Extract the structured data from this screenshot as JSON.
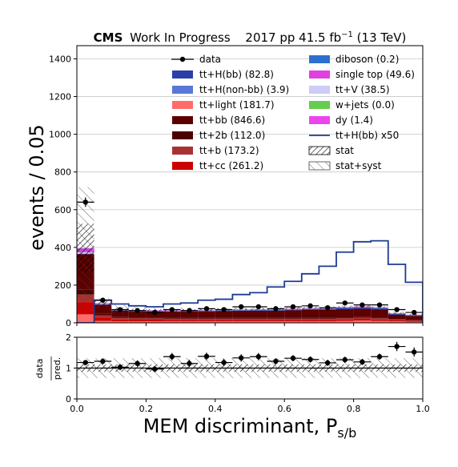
{
  "header": {
    "experiment": "CMS",
    "status": "Work In Progress",
    "lumi_prefix": "2017 pp 41.5 fb",
    "lumi_exp": "−1",
    "lumi_suffix": " (13 TeV)"
  },
  "colors": {
    "ttH_bb": "#2a3ea8",
    "ttH_nonbb": "#5a78d6",
    "tt_light": "#ff6b6b",
    "tt_bb": "#5c0000",
    "tt_2b": "#4d0000",
    "tt_b": "#a83232",
    "tt_cc": "#cc0000",
    "diboson": "#2c6fd1",
    "single_top": "#e040e0",
    "ttV": "#ccccf5",
    "wjets": "#66cc4d",
    "dy": "#ee44ee",
    "signal_line": "#1f3a93"
  },
  "chart_data": [
    {
      "type": "bar",
      "stacked": true,
      "xlabel": "MEM discriminant, P",
      "xlabel_sub": "s/b",
      "ylabel": "events / 0.05",
      "xlim": [
        0,
        1
      ],
      "ylim": [
        0,
        1470
      ],
      "yticks": [
        "0",
        "200",
        "400",
        "600",
        "800",
        "1000",
        "1200",
        "1400"
      ],
      "grid": "horizontal",
      "legend_position": "top",
      "bin_edges": [
        0,
        0.05,
        0.1,
        0.15,
        0.2,
        0.25,
        0.3,
        0.35,
        0.4,
        0.45,
        0.5,
        0.55,
        0.6,
        0.65,
        0.7,
        0.75,
        0.8,
        0.85,
        0.9,
        0.95,
        1.0
      ],
      "series": [
        {
          "key": "tt_light",
          "label": "tt+light (181.7)",
          "values": [
            45,
            10,
            8,
            8,
            8,
            8,
            8,
            8,
            8,
            8,
            8,
            8,
            8,
            8,
            8,
            10,
            12,
            10,
            8,
            6
          ]
        },
        {
          "key": "tt_cc",
          "label": "tt+cc (261.2)",
          "values": [
            65,
            18,
            10,
            9,
            9,
            8,
            8,
            8,
            8,
            8,
            8,
            8,
            8,
            8,
            8,
            8,
            9,
            8,
            6,
            5
          ]
        },
        {
          "key": "tt_b",
          "label": "tt+b (173.2)",
          "values": [
            40,
            12,
            8,
            7,
            7,
            6,
            6,
            6,
            6,
            6,
            6,
            6,
            6,
            6,
            6,
            6,
            6,
            6,
            4,
            3
          ]
        },
        {
          "key": "tt_2b",
          "label": "tt+2b (112.0)",
          "values": [
            25,
            8,
            5,
            4,
            4,
            4,
            4,
            4,
            4,
            4,
            4,
            4,
            4,
            4,
            4,
            4,
            4,
            4,
            3,
            3
          ]
        },
        {
          "key": "tt_bb",
          "label": "tt+bb (846.6)",
          "values": [
            190,
            48,
            34,
            33,
            33,
            34,
            35,
            35,
            37,
            38,
            38,
            38,
            40,
            42,
            42,
            44,
            44,
            42,
            22,
            20
          ]
        },
        {
          "key": "ttH_bb",
          "label": "tt+H(bb) (82.8)",
          "values": [
            1,
            2,
            2,
            2,
            2,
            2,
            2,
            3,
            3,
            3,
            4,
            4,
            5,
            6,
            6,
            8,
            8,
            9,
            6,
            4
          ]
        },
        {
          "key": "ttH_nonbb",
          "label": "tt+H(non-bb) (3.9)",
          "values": [
            0.5,
            0.3,
            0.2,
            0.2,
            0.2,
            0.2,
            0.2,
            0.2,
            0.2,
            0.2,
            0.2,
            0.2,
            0.2,
            0.2,
            0.2,
            0.2,
            0.2,
            0.2,
            0.1,
            0.1
          ]
        },
        {
          "key": "ttV",
          "label": "tt+V (38.5)",
          "values": [
            8,
            2,
            2,
            2,
            2,
            2,
            2,
            2,
            2,
            2,
            2,
            2,
            2,
            2,
            2,
            2,
            2,
            2,
            1,
            1
          ]
        },
        {
          "key": "single_top",
          "label": "single top (49.6)",
          "values": [
            20,
            4,
            2,
            2,
            2,
            2,
            2,
            2,
            2,
            2,
            2,
            2,
            2,
            2,
            2,
            2,
            2,
            2,
            1,
            1
          ]
        },
        {
          "key": "diboson",
          "label": "diboson (0.2)",
          "values": [
            0.1,
            0,
            0,
            0,
            0,
            0,
            0,
            0,
            0,
            0,
            0,
            0,
            0,
            0,
            0,
            0,
            0,
            0,
            0,
            0
          ]
        },
        {
          "key": "wjets",
          "label": "w+jets (0.0)",
          "values": [
            0,
            0,
            0,
            0,
            0,
            0,
            0,
            0,
            0,
            0,
            0,
            0,
            0,
            0,
            0,
            0,
            0,
            0,
            0,
            0
          ]
        },
        {
          "key": "dy",
          "label": "dy (1.4)",
          "values": [
            1,
            0.2,
            0,
            0,
            0,
            0,
            0,
            0,
            0,
            0,
            0,
            0,
            0,
            0,
            0,
            0,
            0,
            0,
            0,
            0
          ]
        }
      ],
      "uncertainty_hi": [
        720,
        130,
        95,
        85,
        80,
        80,
        80,
        80,
        80,
        82,
        82,
        82,
        85,
        88,
        88,
        92,
        95,
        90,
        60,
        50
      ],
      "signal_x50": {
        "label": "tt+H(bb) x50",
        "values": [
          0,
          120,
          100,
          90,
          85,
          100,
          105,
          120,
          125,
          150,
          160,
          190,
          220,
          260,
          300,
          375,
          430,
          435,
          310,
          215
        ]
      },
      "data": {
        "label": "data",
        "values": [
          640,
          120,
          70,
          65,
          55,
          70,
          65,
          75,
          70,
          85,
          85,
          75,
          85,
          90,
          80,
          105,
          95,
          95,
          70,
          55
        ],
        "errors": [
          25,
          11,
          8,
          8,
          7,
          8,
          8,
          9,
          8,
          9,
          9,
          9,
          9,
          9,
          9,
          10,
          10,
          10,
          8,
          7
        ]
      },
      "legend": {
        "col1": [
          "data",
          "tt+H(bb) (82.8)",
          "tt+H(non-bb) (3.9)",
          "tt+light (181.7)",
          "tt+bb (846.6)",
          "tt+2b (112.0)",
          "tt+b (173.2)",
          "tt+cc (261.2)"
        ],
        "col2": [
          "diboson (0.2)",
          "single top (49.6)",
          "tt+V (38.5)",
          "w+jets (0.0)",
          "dy (1.4)",
          "tt+H(bb) x50",
          "stat",
          "stat+syst"
        ]
      }
    },
    {
      "type": "scatter",
      "ylabel_num": "data",
      "ylabel_den": "pred.",
      "xlim": [
        0,
        1
      ],
      "ylim": [
        0,
        2
      ],
      "xticks": [
        "0.0",
        "0.2",
        "0.4",
        "0.6",
        "0.8",
        "1.0"
      ],
      "yticks": [
        "0",
        "1",
        "2"
      ],
      "x": [
        0.025,
        0.075,
        0.125,
        0.175,
        0.225,
        0.275,
        0.325,
        0.375,
        0.425,
        0.475,
        0.525,
        0.575,
        0.625,
        0.675,
        0.725,
        0.775,
        0.825,
        0.875,
        0.925,
        0.975
      ],
      "values": [
        1.18,
        1.22,
        1.03,
        1.15,
        0.97,
        1.37,
        1.15,
        1.38,
        1.18,
        1.33,
        1.37,
        1.22,
        1.32,
        1.28,
        1.17,
        1.27,
        1.2,
        1.37,
        1.7,
        1.52
      ],
      "errors": [
        0.05,
        0.1,
        0.1,
        0.1,
        0.1,
        0.12,
        0.12,
        0.12,
        0.12,
        0.12,
        0.12,
        0.1,
        0.1,
        0.1,
        0.1,
        0.1,
        0.1,
        0.1,
        0.15,
        0.15
      ],
      "band_stat": 0.12,
      "band_syst": 0.32
    }
  ]
}
